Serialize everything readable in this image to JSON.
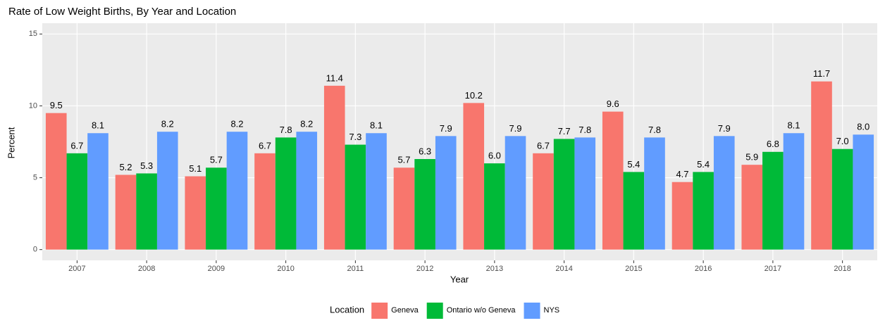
{
  "chart_data": {
    "type": "bar",
    "title": "Rate of Low Weight Births, By Year and Location",
    "x_label": "Year",
    "y_label": "Percent",
    "legend_title": "Location",
    "legend_position": "bottom",
    "categories": [
      "2007",
      "2008",
      "2009",
      "2010",
      "2011",
      "2012",
      "2013",
      "2014",
      "2015",
      "2016",
      "2017",
      "2018"
    ],
    "series": [
      {
        "name": "Geneva",
        "color": "#F8766D",
        "values": [
          9.5,
          5.2,
          5.1,
          6.7,
          11.4,
          5.7,
          10.2,
          6.7,
          9.6,
          4.7,
          5.9,
          11.7
        ],
        "value_labels": [
          "9.5",
          "5.2",
          "5.1",
          "6.7",
          "11.4",
          "5.7",
          "10.2",
          "6.7",
          "9.6",
          "4.7",
          "5.9",
          "11.7"
        ]
      },
      {
        "name": "Ontario w/o Geneva",
        "color": "#00BA38",
        "values": [
          6.7,
          5.3,
          5.7,
          7.8,
          7.3,
          6.3,
          6.0,
          7.7,
          5.4,
          5.4,
          6.8,
          7.0
        ],
        "value_labels": [
          "6.7",
          "5.3",
          "5.7",
          "7.8",
          "7.3",
          "6.3",
          "6.0",
          "7.7",
          "5.4",
          "5.4",
          "6.8",
          "7.0"
        ]
      },
      {
        "name": "NYS",
        "color": "#619CFF",
        "values": [
          8.1,
          8.2,
          8.2,
          8.2,
          8.1,
          7.9,
          7.9,
          7.8,
          7.8,
          7.9,
          8.1,
          8.0
        ],
        "value_labels": [
          "8.1",
          "8.2",
          "8.2",
          "8.2",
          "8.1",
          "7.9",
          "7.9",
          "7.8",
          "7.8",
          "7.9",
          "8.1",
          "8.0"
        ]
      }
    ],
    "ylim": [
      -0.75,
      15.75
    ],
    "yticks": [
      0,
      5,
      10,
      15
    ],
    "grid": true
  }
}
